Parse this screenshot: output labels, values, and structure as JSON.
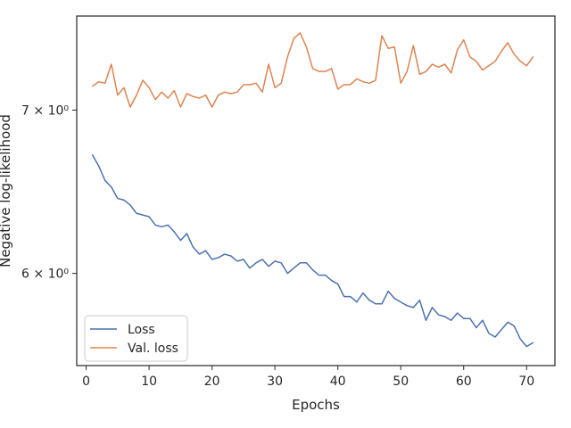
{
  "chart_data": {
    "type": "line",
    "title": "",
    "xlabel": "Epochs",
    "ylabel": "Negative log-likelihood",
    "yscale": "log",
    "xlim": [
      -1.5,
      74.5
    ],
    "ylim": [
      5.5,
      7.65
    ],
    "grid": false,
    "legend_position": "lower-left",
    "x_ticks": [
      0,
      10,
      20,
      30,
      40,
      50,
      60,
      70
    ],
    "x_tick_labels": [
      "0",
      "10",
      "20",
      "30",
      "40",
      "50",
      "60",
      "70"
    ],
    "y_ticks": [
      6,
      7
    ],
    "y_tick_labels": [
      "6 × 10⁰",
      "7 × 10⁰"
    ],
    "x": [
      1,
      2,
      3,
      4,
      5,
      6,
      7,
      8,
      9,
      10,
      11,
      12,
      13,
      14,
      15,
      16,
      17,
      18,
      19,
      20,
      21,
      22,
      23,
      24,
      25,
      26,
      27,
      28,
      29,
      30,
      31,
      32,
      33,
      34,
      35,
      36,
      37,
      38,
      39,
      40,
      41,
      42,
      43,
      44,
      45,
      46,
      47,
      48,
      49,
      50,
      51,
      52,
      53,
      54,
      55,
      56,
      57,
      58,
      59,
      60,
      61,
      62,
      63,
      64,
      65,
      66,
      67,
      68,
      69,
      70,
      71
    ],
    "series": [
      {
        "name": "Loss",
        "color": "#4c72b0",
        "values": [
          6.71,
          6.64,
          6.55,
          6.51,
          6.44,
          6.43,
          6.4,
          6.35,
          6.34,
          6.33,
          6.28,
          6.27,
          6.28,
          6.24,
          6.19,
          6.23,
          6.15,
          6.11,
          6.13,
          6.08,
          6.09,
          6.11,
          6.1,
          6.07,
          6.08,
          6.03,
          6.06,
          6.08,
          6.04,
          6.07,
          6.06,
          6.0,
          6.03,
          6.06,
          6.06,
          6.02,
          5.99,
          5.99,
          5.96,
          5.94,
          5.87,
          5.87,
          5.84,
          5.89,
          5.85,
          5.83,
          5.83,
          5.9,
          5.86,
          5.84,
          5.82,
          5.81,
          5.85,
          5.74,
          5.81,
          5.77,
          5.76,
          5.74,
          5.78,
          5.75,
          5.75,
          5.7,
          5.74,
          5.67,
          5.65,
          5.69,
          5.73,
          5.71,
          5.64,
          5.6,
          5.62
        ]
      },
      {
        "name": "Val. loss",
        "color": "#dd8452",
        "values": [
          7.16,
          7.19,
          7.18,
          7.31,
          7.1,
          7.15,
          7.02,
          7.1,
          7.2,
          7.15,
          7.07,
          7.12,
          7.08,
          7.13,
          7.02,
          7.11,
          7.09,
          7.08,
          7.1,
          7.02,
          7.1,
          7.12,
          7.11,
          7.12,
          7.17,
          7.17,
          7.18,
          7.12,
          7.31,
          7.15,
          7.18,
          7.36,
          7.49,
          7.53,
          7.43,
          7.28,
          7.26,
          7.26,
          7.28,
          7.14,
          7.17,
          7.17,
          7.21,
          7.19,
          7.18,
          7.2,
          7.51,
          7.42,
          7.43,
          7.18,
          7.26,
          7.44,
          7.24,
          7.26,
          7.31,
          7.29,
          7.31,
          7.25,
          7.41,
          7.48,
          7.36,
          7.33,
          7.27,
          7.3,
          7.33,
          7.4,
          7.46,
          7.38,
          7.33,
          7.3,
          7.36
        ]
      }
    ]
  }
}
